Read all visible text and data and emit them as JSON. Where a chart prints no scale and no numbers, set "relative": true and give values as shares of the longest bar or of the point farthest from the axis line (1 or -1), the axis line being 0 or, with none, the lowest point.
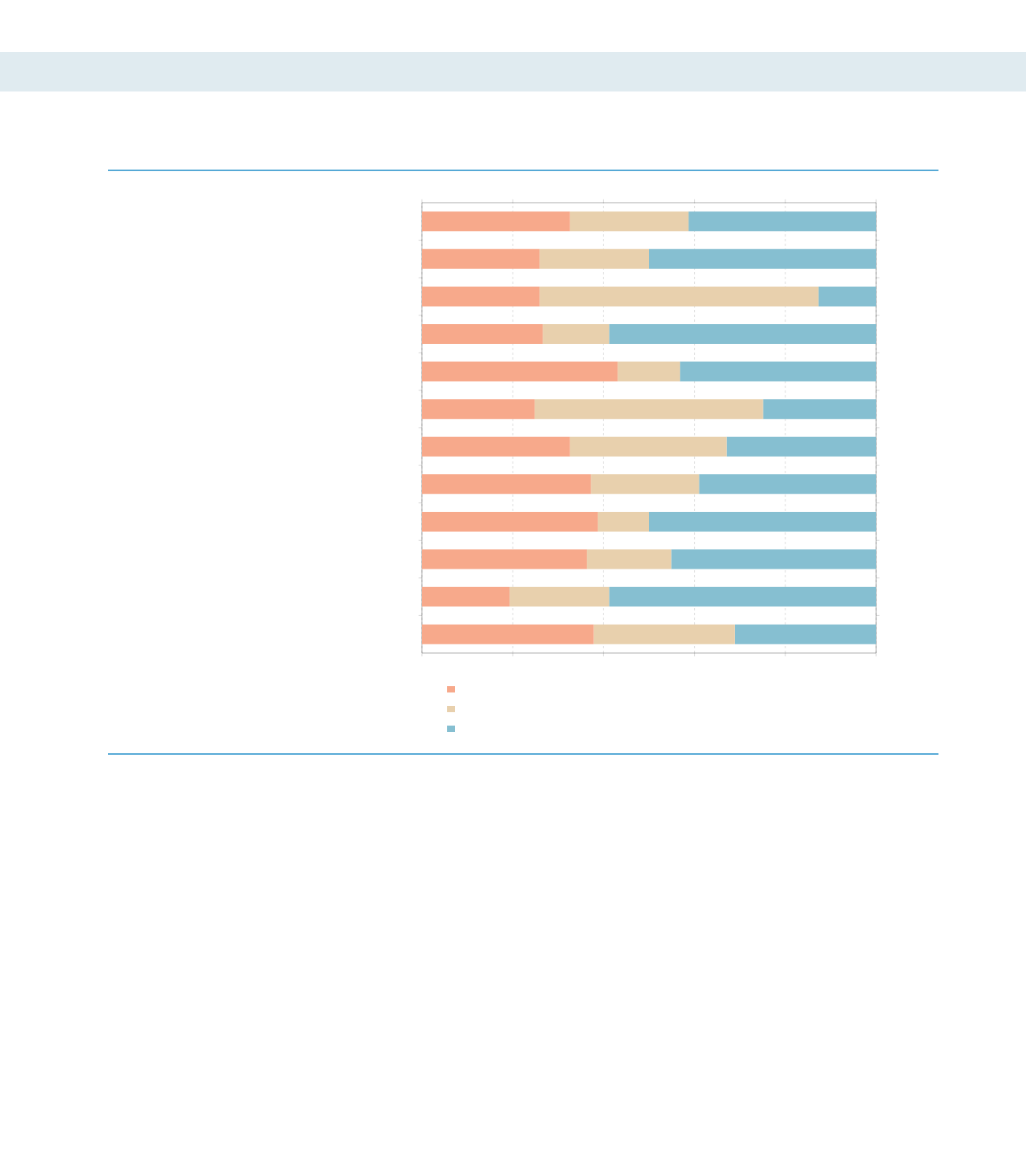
{
  "chart_data": {
    "type": "bar",
    "orientation": "horizontal",
    "stacked": true,
    "relative": true,
    "grid": "x",
    "categories": [
      null,
      null,
      null,
      null,
      null,
      null,
      null,
      null,
      null,
      null,
      null,
      null
    ],
    "series": [
      {
        "color": "#f7a98b",
        "values": [
          0.326,
          0.259,
          0.259,
          0.266,
          0.431,
          0.248,
          0.326,
          0.372,
          0.387,
          0.363,
          0.193,
          0.378
        ]
      },
      {
        "color": "#e8d0ad",
        "values": [
          0.261,
          0.241,
          0.614,
          0.146,
          0.137,
          0.503,
          0.345,
          0.238,
          0.113,
          0.186,
          0.219,
          0.311
        ]
      },
      {
        "color": "#86bfd1",
        "values": [
          0.413,
          0.5,
          0.127,
          0.588,
          0.432,
          0.249,
          0.329,
          0.39,
          0.5,
          0.451,
          0.588,
          0.311
        ]
      }
    ]
  }
}
